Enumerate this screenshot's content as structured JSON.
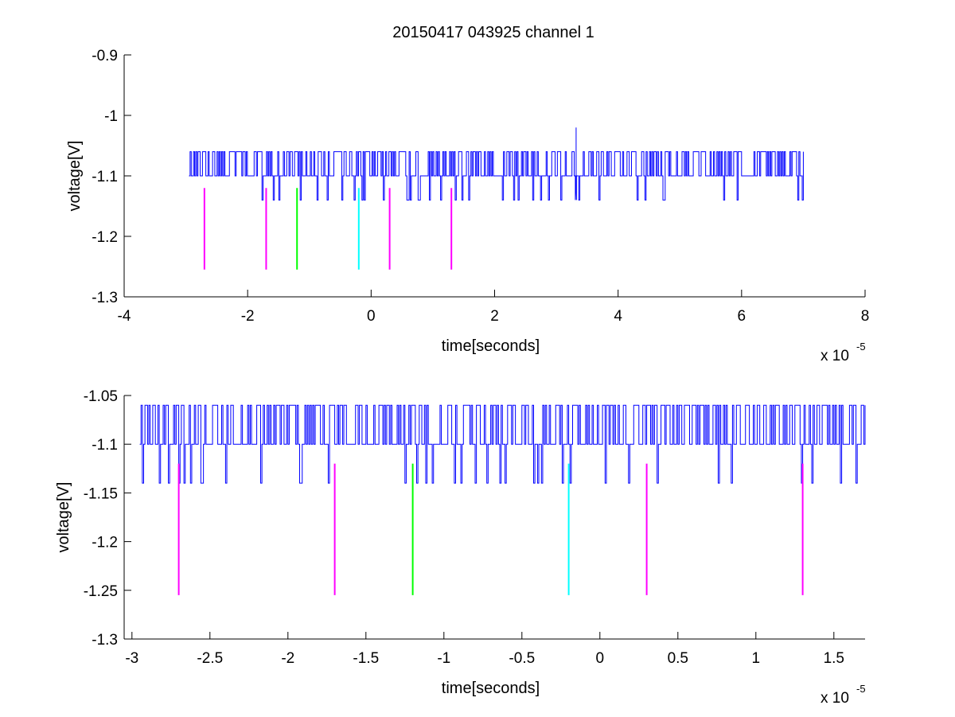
{
  "figure": {
    "title": "20150417 043925 channel 1",
    "background": "#ffffff"
  },
  "chart_data": [
    {
      "type": "line",
      "title": "20150417 043925 channel 1",
      "xlabel": "time[seconds]",
      "ylabel": "voltage[V]",
      "x_exponent_label": "x 10",
      "x_exponent": "-5",
      "xlim": [
        -4,
        8
      ],
      "ylim": [
        -1.3,
        -0.9
      ],
      "xticks": [
        -4,
        -2,
        0,
        2,
        4,
        6,
        8
      ],
      "xtick_labels": [
        "-4",
        "-2",
        "0",
        "2",
        "4",
        "6",
        "8"
      ],
      "yticks": [
        -1.3,
        -1.2,
        -1.1,
        -1.0,
        -0.9
      ],
      "ytick_labels": [
        "-1.3",
        "-1.2",
        "-1.1",
        "-1",
        "-0.9"
      ],
      "grid": false,
      "series": [
        {
          "kind": "trace",
          "color": "#0000ff",
          "x_range": [
            -2.95,
            7.0
          ],
          "baseline": -1.1,
          "upper_level": -1.06,
          "lower_level": -1.14,
          "peak": {
            "x": 3.32,
            "y": -1.02
          }
        }
      ],
      "markers": [
        {
          "x": -2.7,
          "y_from": -1.12,
          "y_to": -1.255,
          "color": "#ff00ff"
        },
        {
          "x": -1.7,
          "y_from": -1.12,
          "y_to": -1.255,
          "color": "#ff00ff"
        },
        {
          "x": -1.2,
          "y_from": -1.12,
          "y_to": -1.255,
          "color": "#00ff00"
        },
        {
          "x": -0.2,
          "y_from": -1.12,
          "y_to": -1.255,
          "color": "#00ffff"
        },
        {
          "x": 0.3,
          "y_from": -1.12,
          "y_to": -1.255,
          "color": "#ff00ff"
        },
        {
          "x": 1.3,
          "y_from": -1.12,
          "y_to": -1.255,
          "color": "#ff00ff"
        }
      ]
    },
    {
      "type": "line",
      "title": "",
      "xlabel": "time[seconds]",
      "ylabel": "voltage[V]",
      "x_exponent_label": "x 10",
      "x_exponent": "-5",
      "xlim": [
        -3.05,
        1.7
      ],
      "ylim": [
        -1.3,
        -1.05
      ],
      "xticks": [
        -3,
        -2.5,
        -2,
        -1.5,
        -1,
        -0.5,
        0,
        0.5,
        1,
        1.5
      ],
      "xtick_labels": [
        "-3",
        "-2.5",
        "-2",
        "-1.5",
        "-1",
        "-0.5",
        "0",
        "0.5",
        "1",
        "1.5"
      ],
      "yticks": [
        -1.3,
        -1.25,
        -1.2,
        -1.15,
        -1.1,
        -1.05
      ],
      "ytick_labels": [
        "-1.3",
        "-1.25",
        "-1.2",
        "-1.15",
        "-1.1",
        "-1.05"
      ],
      "grid": false,
      "series": [
        {
          "kind": "trace",
          "color": "#0000ff",
          "x_range": [
            -2.95,
            1.7
          ],
          "baseline": -1.1,
          "upper_level": -1.06,
          "lower_level": -1.14
        }
      ],
      "markers": [
        {
          "x": -2.7,
          "y_from": -1.12,
          "y_to": -1.255,
          "color": "#ff00ff"
        },
        {
          "x": -1.7,
          "y_from": -1.12,
          "y_to": -1.255,
          "color": "#ff00ff"
        },
        {
          "x": -1.2,
          "y_from": -1.12,
          "y_to": -1.255,
          "color": "#00ff00"
        },
        {
          "x": -0.2,
          "y_from": -1.12,
          "y_to": -1.255,
          "color": "#00ffff"
        },
        {
          "x": 0.3,
          "y_from": -1.12,
          "y_to": -1.255,
          "color": "#ff00ff"
        },
        {
          "x": 1.3,
          "y_from": -1.12,
          "y_to": -1.255,
          "color": "#ff00ff"
        }
      ]
    }
  ]
}
